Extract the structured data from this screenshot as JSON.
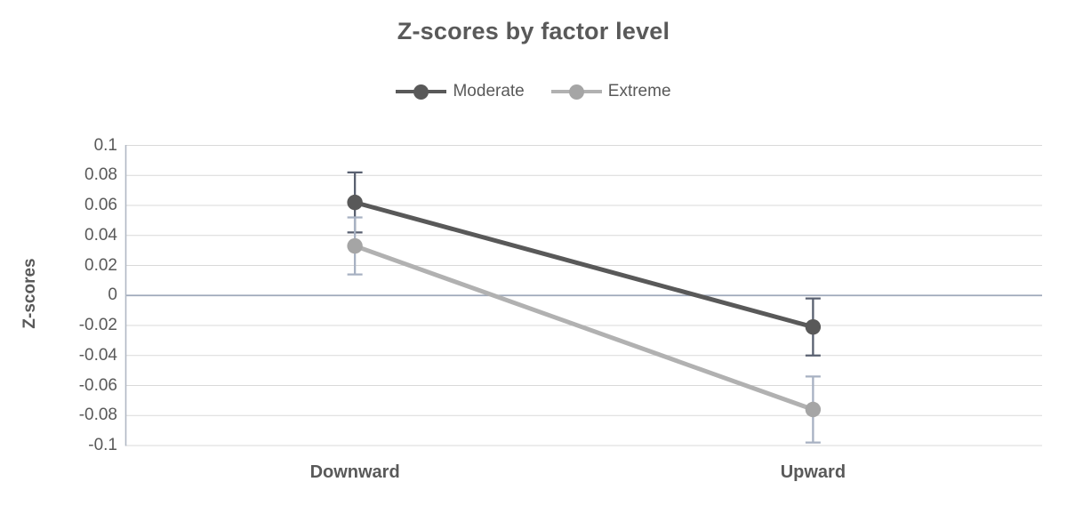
{
  "title": "Z-scores by factor level",
  "chart_data": {
    "type": "line",
    "title": "Z-scores by factor level",
    "categories": [
      "Downward",
      "Upward"
    ],
    "series": [
      {
        "name": "Moderate",
        "values": [
          0.062,
          -0.021
        ],
        "error_bars": [
          0.02,
          0.019
        ],
        "ci_low": [
          0.042,
          -0.04
        ],
        "ci_high": [
          0.082,
          -0.002
        ],
        "line_color": "#595959",
        "marker_color": "#595959",
        "error_color": "#596070"
      },
      {
        "name": "Extreme",
        "values": [
          0.033,
          -0.076
        ],
        "error_bars": [
          0.019,
          0.022
        ],
        "ci_low": [
          0.014,
          -0.098
        ],
        "ci_high": [
          0.052,
          -0.054
        ],
        "line_color": "#b1b1b1",
        "marker_color": "#a5a5a5",
        "error_color": "#a7b1c2"
      }
    ],
    "xlabel": "",
    "ylabel": "Z-scores",
    "ylim": [
      -0.1,
      0.1
    ],
    "ytick_step": 0.02,
    "ytick_labels": [
      "0.1",
      "0.08",
      "0.06",
      "0.04",
      "0.02",
      "0",
      "-0.02",
      "-0.04",
      "-0.06",
      "-0.08",
      "-0.1"
    ],
    "grid": true,
    "legend_position": "top",
    "marker_style": "circle"
  },
  "colors": {
    "text": "#595959",
    "gridline": "#d9d9d9",
    "zero_line": "#9fa9ba",
    "axis_line": "#b0b8c4",
    "background": "#ffffff"
  }
}
